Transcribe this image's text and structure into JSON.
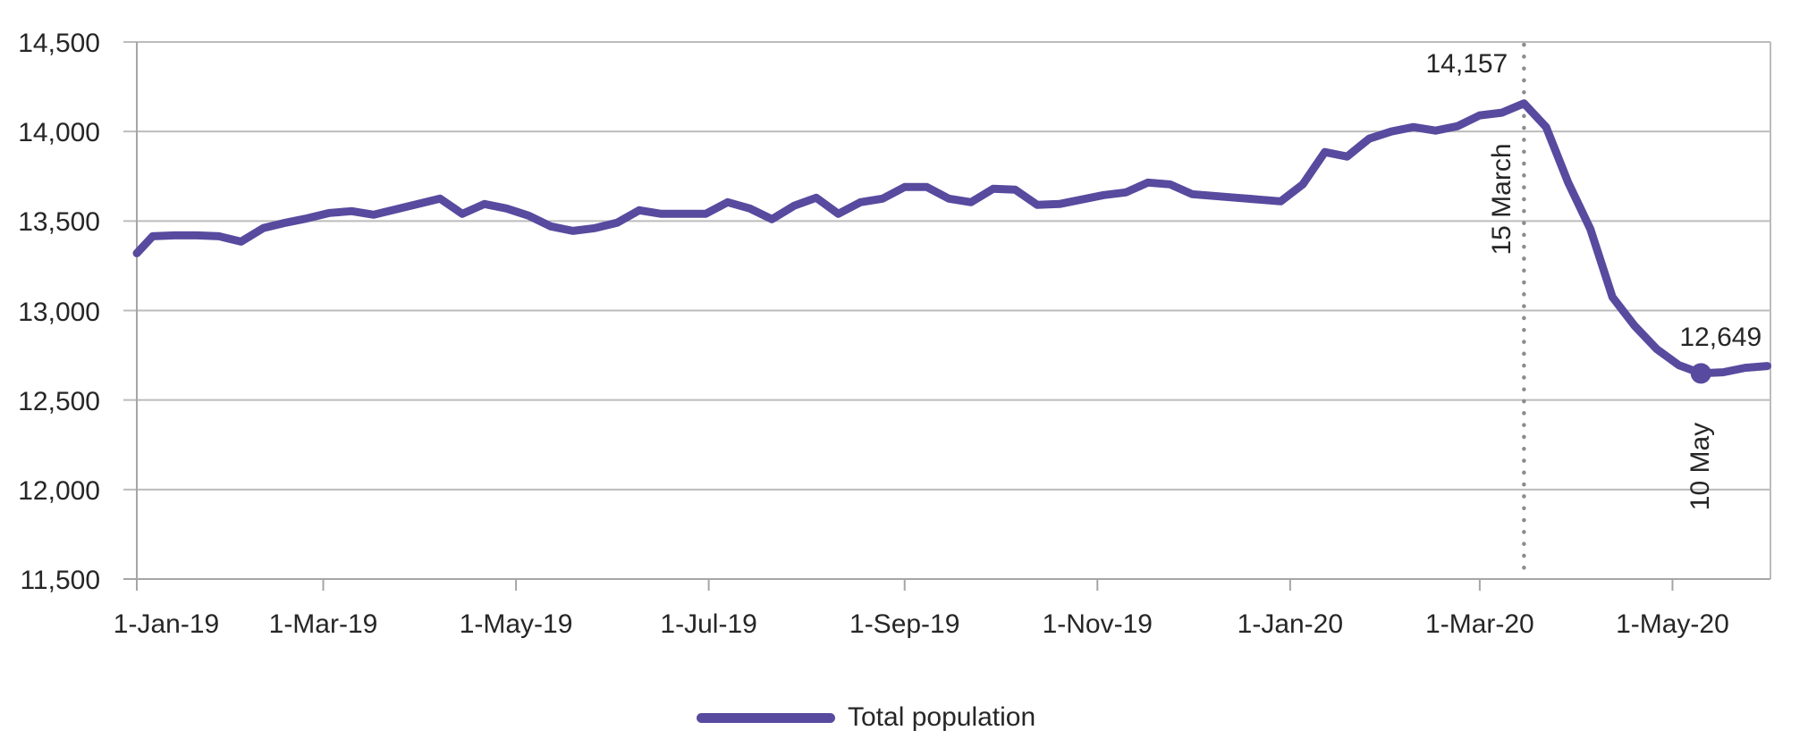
{
  "chart_data": {
    "type": "line",
    "grid": true,
    "colors": {
      "line": "#584a9e",
      "marker": "#584a9e",
      "annotation_line": "#8c8c8c",
      "gridline": "#bcbcbc",
      "axis": "#a6a6a6",
      "text": "#262626",
      "background": "#ffffff"
    },
    "x_axis": {
      "start_date": "2019-01-01",
      "end_date": "2020-06-01",
      "ticks": [
        {
          "date": "2019-01-01",
          "label": "1-Jan-19"
        },
        {
          "date": "2019-03-01",
          "label": "1-Mar-19"
        },
        {
          "date": "2019-05-01",
          "label": "1-May-19"
        },
        {
          "date": "2019-07-01",
          "label": "1-Jul-19"
        },
        {
          "date": "2019-09-01",
          "label": "1-Sep-19"
        },
        {
          "date": "2019-11-01",
          "label": "1-Nov-19"
        },
        {
          "date": "2020-01-01",
          "label": "1-Jan-20"
        },
        {
          "date": "2020-03-01",
          "label": "1-Mar-20"
        },
        {
          "date": "2020-05-01",
          "label": "1-May-20"
        }
      ]
    },
    "y_axis": {
      "min": 11500,
      "max": 14500,
      "step": 500,
      "ticks": [
        {
          "value": 14500,
          "label": "14,500"
        },
        {
          "value": 14000,
          "label": "14,000"
        },
        {
          "value": 13500,
          "label": "13,500"
        },
        {
          "value": 13000,
          "label": "13,000"
        },
        {
          "value": 12500,
          "label": "12,500"
        },
        {
          "value": 12000,
          "label": "12,000"
        },
        {
          "value": 11500,
          "label": "11,500"
        }
      ]
    },
    "legend": {
      "position": "bottom",
      "entries": [
        {
          "label": "Total population",
          "color": "#584a9e"
        }
      ]
    },
    "annotations": {
      "peak": {
        "value_label": "14,157",
        "date_label": "15 March",
        "date": "2020-03-15",
        "value": 14157,
        "line_style": "dotted"
      },
      "low": {
        "value_label": "12,649",
        "date_label": "10 May",
        "date": "2020-05-10",
        "value": 12649,
        "marker": "circle"
      }
    },
    "series": [
      {
        "name": "Total population",
        "color": "#584a9e",
        "points": [
          [
            "2019-01-01",
            13320
          ],
          [
            "2019-01-06",
            13415
          ],
          [
            "2019-01-13",
            13420
          ],
          [
            "2019-01-20",
            13420
          ],
          [
            "2019-01-27",
            13415
          ],
          [
            "2019-02-03",
            13385
          ],
          [
            "2019-02-10",
            13460
          ],
          [
            "2019-02-17",
            13490
          ],
          [
            "2019-02-24",
            13515
          ],
          [
            "2019-03-03",
            13545
          ],
          [
            "2019-03-10",
            13555
          ],
          [
            "2019-03-17",
            13535
          ],
          [
            "2019-03-24",
            13565
          ],
          [
            "2019-03-31",
            13595
          ],
          [
            "2019-04-07",
            13625
          ],
          [
            "2019-04-14",
            13540
          ],
          [
            "2019-04-21",
            13595
          ],
          [
            "2019-04-28",
            13570
          ],
          [
            "2019-05-05",
            13530
          ],
          [
            "2019-05-12",
            13470
          ],
          [
            "2019-05-19",
            13445
          ],
          [
            "2019-05-26",
            13460
          ],
          [
            "2019-06-02",
            13490
          ],
          [
            "2019-06-09",
            13560
          ],
          [
            "2019-06-16",
            13540
          ],
          [
            "2019-06-23",
            13540
          ],
          [
            "2019-06-30",
            13540
          ],
          [
            "2019-07-07",
            13605
          ],
          [
            "2019-07-14",
            13570
          ],
          [
            "2019-07-21",
            13510
          ],
          [
            "2019-07-28",
            13585
          ],
          [
            "2019-08-04",
            13630
          ],
          [
            "2019-08-11",
            13540
          ],
          [
            "2019-08-18",
            13605
          ],
          [
            "2019-08-25",
            13625
          ],
          [
            "2019-09-01",
            13690
          ],
          [
            "2019-09-08",
            13690
          ],
          [
            "2019-09-15",
            13625
          ],
          [
            "2019-09-22",
            13605
          ],
          [
            "2019-09-29",
            13680
          ],
          [
            "2019-10-06",
            13675
          ],
          [
            "2019-10-13",
            13590
          ],
          [
            "2019-10-20",
            13595
          ],
          [
            "2019-10-27",
            13620
          ],
          [
            "2019-11-03",
            13645
          ],
          [
            "2019-11-10",
            13660
          ],
          [
            "2019-11-17",
            13715
          ],
          [
            "2019-11-24",
            13705
          ],
          [
            "2019-12-01",
            13650
          ],
          [
            "2019-12-08",
            13640
          ],
          [
            "2019-12-15",
            13630
          ],
          [
            "2019-12-22",
            13620
          ],
          [
            "2019-12-29",
            13610
          ],
          [
            "2020-01-05",
            13705
          ],
          [
            "2020-01-12",
            13885
          ],
          [
            "2020-01-19",
            13860
          ],
          [
            "2020-01-26",
            13960
          ],
          [
            "2020-02-02",
            14000
          ],
          [
            "2020-02-09",
            14025
          ],
          [
            "2020-02-16",
            14005
          ],
          [
            "2020-02-23",
            14030
          ],
          [
            "2020-03-01",
            14090
          ],
          [
            "2020-03-08",
            14105
          ],
          [
            "2020-03-15",
            14157
          ],
          [
            "2020-03-22",
            14025
          ],
          [
            "2020-03-29",
            13715
          ],
          [
            "2020-04-05",
            13455
          ],
          [
            "2020-04-12",
            13075
          ],
          [
            "2020-04-19",
            12915
          ],
          [
            "2020-04-26",
            12785
          ],
          [
            "2020-05-03",
            12695
          ],
          [
            "2020-05-10",
            12649
          ],
          [
            "2020-05-17",
            12655
          ],
          [
            "2020-05-24",
            12680
          ],
          [
            "2020-05-31",
            12690
          ]
        ]
      }
    ]
  }
}
